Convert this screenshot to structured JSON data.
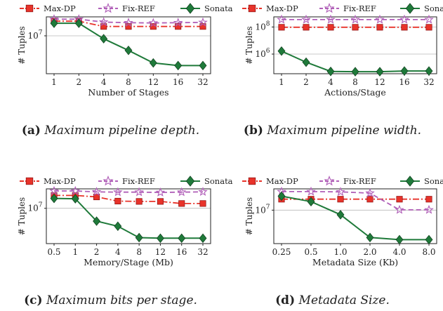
{
  "colors": {
    "maxdp": "#e8332a",
    "fixref": "#b05fb8",
    "sonata": "#1f7a3a",
    "grid": "#b8b8b8",
    "axis": "#222222"
  },
  "chart_data": [
    {
      "type": "line",
      "id": "a",
      "xlabel": "Number of Stages",
      "ylabel": "# Tuples",
      "scale": "log",
      "ylim_exp": [
        5.7,
        7.65
      ],
      "yticks": [
        {
          "exp": 7,
          "label": "10"
        }
      ],
      "categories": [
        "1",
        "2",
        "4",
        "8",
        "12",
        "16",
        "32"
      ],
      "series": [
        {
          "name": "Max-DP",
          "marker": "square",
          "style": "dashdot",
          "values_exp": [
            7.5,
            7.5,
            7.32,
            7.32,
            7.32,
            7.32,
            7.32
          ]
        },
        {
          "name": "Fix-REF",
          "marker": "star",
          "style": "dashed",
          "values_exp": [
            7.57,
            7.57,
            7.47,
            7.45,
            7.44,
            7.45,
            7.46
          ]
        },
        {
          "name": "Sonata",
          "marker": "diamond",
          "style": "solid",
          "values_exp": [
            7.43,
            7.43,
            6.9,
            6.5,
            6.07,
            5.98,
            5.98
          ]
        }
      ],
      "caption": {
        "label": "(a)",
        "text": "Maximum pipeline depth."
      }
    },
    {
      "type": "line",
      "id": "b",
      "xlabel": "Actions/Stage",
      "ylabel": "# Tuples",
      "scale": "log",
      "ylim_exp": [
        4.55,
        8.75
      ],
      "yticks": [
        {
          "exp": 6,
          "label": "10"
        },
        {
          "exp": 8,
          "label": "10"
        }
      ],
      "categories": [
        "1",
        "2",
        "4",
        "8",
        "12",
        "16",
        "32"
      ],
      "series": [
        {
          "name": "Max-DP",
          "marker": "square",
          "style": "dashdot",
          "values_exp": [
            7.98,
            7.98,
            7.98,
            7.98,
            7.98,
            7.98,
            7.98
          ]
        },
        {
          "name": "Fix-REF",
          "marker": "star",
          "style": "dashed",
          "values_exp": [
            8.55,
            8.55,
            8.55,
            8.55,
            8.55,
            8.55,
            8.55
          ]
        },
        {
          "name": "Sonata",
          "marker": "diamond",
          "style": "solid",
          "values_exp": [
            6.22,
            5.4,
            4.72,
            4.7,
            4.7,
            4.75,
            4.75
          ]
        }
      ],
      "caption": {
        "label": "(b)",
        "text": "Maximum pipeline width."
      }
    },
    {
      "type": "line",
      "id": "c",
      "xlabel": "Memory/Stage (Mb)",
      "ylabel": "# Tuples",
      "scale": "log",
      "ylim_exp": [
        5.82,
        7.65
      ],
      "yticks": [
        {
          "exp": 7,
          "label": "10"
        }
      ],
      "categories": [
        "0.5",
        "1",
        "2",
        "4",
        "8",
        "12",
        "16",
        "32"
      ],
      "series": [
        {
          "name": "Max-DP",
          "marker": "square",
          "style": "dashdot",
          "values_exp": [
            7.43,
            7.43,
            7.38,
            7.24,
            7.23,
            7.23,
            7.16,
            7.16
          ]
        },
        {
          "name": "Fix-REF",
          "marker": "star",
          "style": "dashed",
          "values_exp": [
            7.58,
            7.58,
            7.55,
            7.54,
            7.54,
            7.53,
            7.54,
            7.55
          ]
        },
        {
          "name": "Sonata",
          "marker": "diamond",
          "style": "solid",
          "values_exp": [
            7.33,
            7.32,
            6.57,
            6.4,
            6.02,
            6.0,
            6.0,
            6.0
          ]
        }
      ],
      "caption": {
        "label": "(c)",
        "text": "Maximum bits per stage."
      }
    },
    {
      "type": "line",
      "id": "d",
      "xlabel": "Metadata Size (Kb)",
      "ylabel": "# Tuples",
      "scale": "log",
      "ylim_exp": [
        5.9,
        7.7
      ],
      "yticks": [
        {
          "exp": 7,
          "label": "10"
        }
      ],
      "categories": [
        "0.25",
        "0.5",
        "1.0",
        "2.0",
        "4.0",
        "8.0"
      ],
      "series": [
        {
          "name": "Max-DP",
          "marker": "square",
          "style": "dashdot",
          "values_exp": [
            7.36,
            7.36,
            7.36,
            7.36,
            7.36,
            7.36
          ]
        },
        {
          "name": "Fix-REF",
          "marker": "star",
          "style": "dashed",
          "values_exp": [
            7.61,
            7.61,
            7.6,
            7.56,
            7.01,
            7.01
          ]
        },
        {
          "name": "Sonata",
          "marker": "diamond",
          "style": "solid",
          "values_exp": [
            7.46,
            7.28,
            6.85,
            6.1,
            6.03,
            6.03
          ]
        }
      ],
      "caption": {
        "label": "(d)",
        "text": "Metadata Size."
      }
    }
  ]
}
